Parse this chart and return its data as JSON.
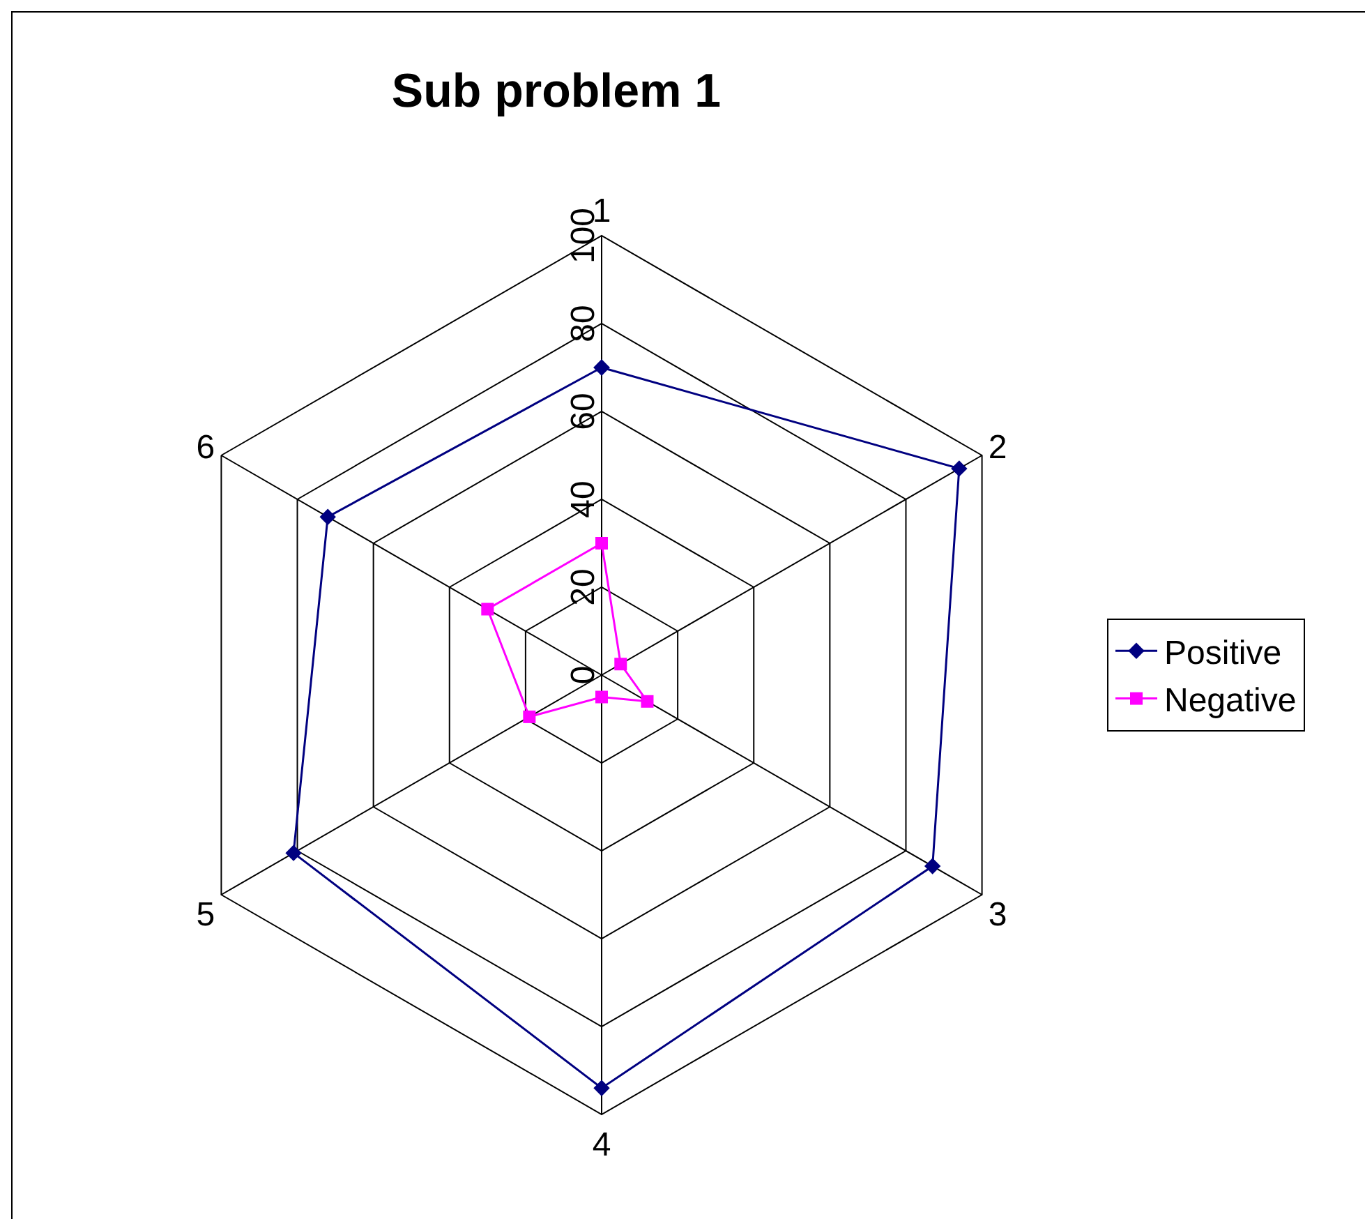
{
  "chart_data": {
    "type": "radar",
    "title": "Sub problem 1",
    "categories": [
      "1",
      "2",
      "3",
      "4",
      "5",
      "6"
    ],
    "series": [
      {
        "name": "Positive",
        "color": "#000080",
        "marker": "diamond",
        "values": [
          70,
          94,
          87,
          94,
          81,
          72
        ]
      },
      {
        "name": "Negative",
        "color": "#ff00ff",
        "marker": "square",
        "values": [
          30,
          5,
          12,
          5,
          19,
          30
        ]
      }
    ],
    "ylim": [
      0,
      100
    ],
    "yticks": [
      0,
      20,
      40,
      60,
      80,
      100
    ],
    "grid": true,
    "legend": "right",
    "line_style": "solid"
  }
}
